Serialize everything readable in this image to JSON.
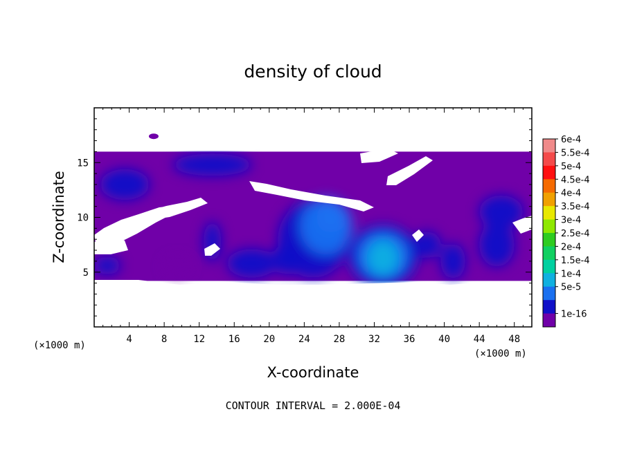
{
  "chart_data": {
    "type": "heatmap",
    "title": "density of cloud",
    "xlabel": "X-coordinate",
    "ylabel": "Z-coordinate",
    "x_unit": "(×1000 m)",
    "z_unit": "(×1000 m)",
    "xlim": [
      0,
      50
    ],
    "ylim": [
      0,
      20
    ],
    "x_ticks": [
      4,
      8,
      12,
      16,
      20,
      24,
      28,
      32,
      36,
      40,
      44,
      48
    ],
    "y_ticks": [
      5,
      10,
      15
    ],
    "colorbar": {
      "labels": [
        "6e-4",
        "5.5e-4",
        "5e-4",
        "4.5e-4",
        "4e-4",
        "3.5e-4",
        "3e-4",
        "2.5e-4",
        "2e-4",
        "1.5e-4",
        "1e-4",
        "5e-5",
        "1e-16"
      ],
      "colors": [
        "#f08a8a",
        "#f44a4a",
        "#ff1010",
        "#f56a00",
        "#f0a000",
        "#e8e800",
        "#8ee800",
        "#2ecc20",
        "#10d060",
        "#00d0a0",
        "#10b0e0",
        "#1a70f0",
        "#1010c8",
        "#7000a8"
      ]
    },
    "footer": "CONTOUR INTERVAL = 2.000E-04",
    "cloud_layer_z": [
      4.2,
      16.0
    ],
    "cells": [
      {
        "x": 3.5,
        "z": 13.0,
        "rx": 2.8,
        "rz": 1.4,
        "v": 6e-05
      },
      {
        "x": 13.5,
        "z": 14.8,
        "rx": 4.5,
        "rz": 1.0,
        "v": 5e-05
      },
      {
        "x": 46.5,
        "z": 10.5,
        "rx": 2.5,
        "rz": 1.5,
        "v": 8e-05
      },
      {
        "x": 46.0,
        "z": 7.5,
        "rx": 2.0,
        "rz": 2.0,
        "v": 5e-05
      },
      {
        "x": 25.0,
        "z": 8.0,
        "rx": 4.0,
        "rz": 3.5,
        "v": 7e-05
      },
      {
        "x": 26.5,
        "z": 9.2,
        "rx": 3.0,
        "rz": 2.6,
        "v": 0.000125
      },
      {
        "x": 27.0,
        "z": 10.0,
        "rx": 1.6,
        "rz": 1.4,
        "v": 0.00015
      },
      {
        "x": 33.0,
        "z": 6.5,
        "rx": 4.0,
        "rz": 2.8,
        "v": 8e-05
      },
      {
        "x": 33.0,
        "z": 6.5,
        "rx": 3.0,
        "rz": 2.2,
        "v": 0.00012
      },
      {
        "x": 33.0,
        "z": 6.3,
        "rx": 1.8,
        "rz": 1.6,
        "v": 0.00016
      },
      {
        "x": 38.0,
        "z": 7.5,
        "rx": 1.6,
        "rz": 1.2,
        "v": 5e-05
      },
      {
        "x": 41.0,
        "z": 6.0,
        "rx": 1.4,
        "rz": 1.6,
        "v": 6e-05
      },
      {
        "x": 18.0,
        "z": 5.8,
        "rx": 2.8,
        "rz": 1.3,
        "v": 5e-05
      },
      {
        "x": 13.5,
        "z": 7.8,
        "rx": 1.0,
        "rz": 1.8,
        "v": 5e-05
      },
      {
        "x": 9.5,
        "z": 5.5,
        "rx": 1.5,
        "rz": 0.9,
        "v": 4e-05
      },
      {
        "x": 1.5,
        "z": 5.6,
        "rx": 1.5,
        "rz": 0.8,
        "v": 6e-05
      },
      {
        "x": 22.0,
        "z": 6.2,
        "rx": 1.6,
        "rz": 1.4,
        "v": 5e-05
      }
    ]
  }
}
